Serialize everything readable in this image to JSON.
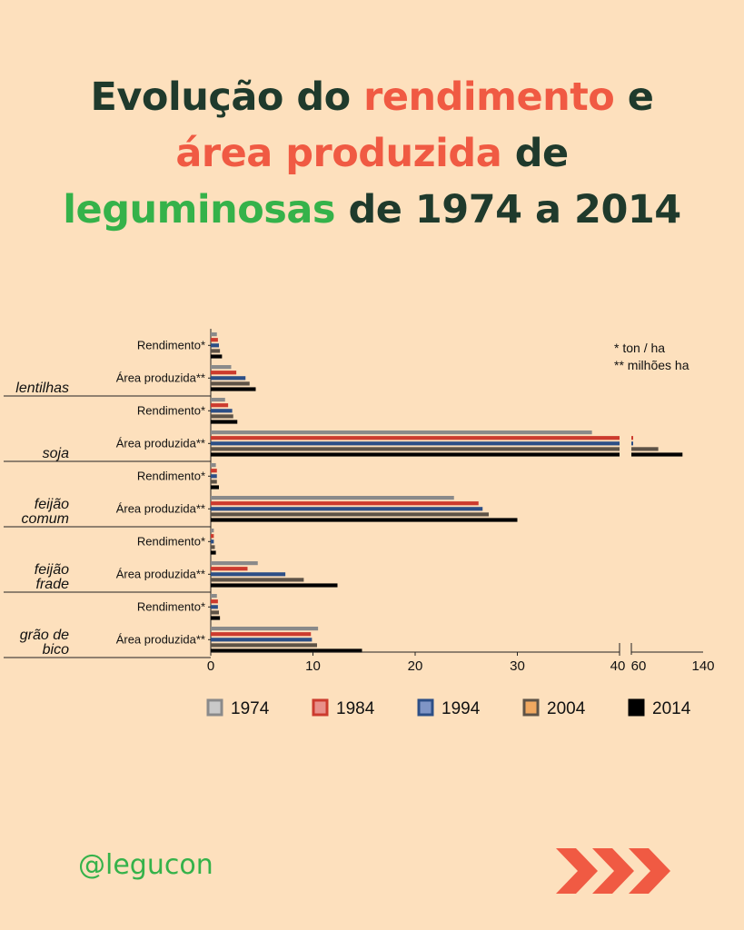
{
  "title": {
    "line1_a": "Evolução do ",
    "line1_b": "rendimento",
    "line1_c": " e",
    "line2_a": "área  produzida",
    "line2_b": " de",
    "line3_a": "leguminosas",
    "line3_b": " de 1974 a 2014"
  },
  "handle": "@legucon",
  "colors": {
    "background": "#fde0bd",
    "title_dark": "#1f3a2c",
    "title_red": "#f05a43",
    "title_green": "#35b24a",
    "arrows": "#f05a43"
  },
  "chart_data": {
    "type": "bar",
    "orientation": "horizontal",
    "notes": [
      "* ton / ha",
      "** milhões ha"
    ],
    "metric_labels": [
      "Rendimento*",
      "Área produzida**"
    ],
    "crops": [
      {
        "name_lines": [
          "lentilhas"
        ],
        "rendimento": [
          0.6,
          0.7,
          0.8,
          0.9,
          1.1
        ],
        "area": [
          2.0,
          2.5,
          3.4,
          3.8,
          4.4
        ]
      },
      {
        "name_lines": [
          "soja"
        ],
        "rendimento": [
          1.4,
          1.7,
          2.1,
          2.2,
          2.6
        ],
        "area": [
          37.3,
          40.5,
          45.0,
          90.0,
          117.0
        ]
      },
      {
        "name_lines": [
          "feijão",
          "comum"
        ],
        "rendimento": [
          0.5,
          0.6,
          0.6,
          0.6,
          0.8
        ],
        "area": [
          23.8,
          26.2,
          26.6,
          27.2,
          30.0
        ]
      },
      {
        "name_lines": [
          "feijão",
          "frade"
        ],
        "rendimento": [
          0.3,
          0.3,
          0.3,
          0.4,
          0.5
        ],
        "area": [
          4.6,
          3.6,
          7.3,
          9.1,
          12.4
        ]
      },
      {
        "name_lines": [
          "grão de",
          "bico"
        ],
        "rendimento": [
          0.6,
          0.7,
          0.7,
          0.8,
          0.9
        ],
        "area": [
          10.5,
          9.8,
          9.9,
          10.4,
          14.8
        ]
      }
    ],
    "series": [
      {
        "name": "1974",
        "color": "#8a8a8a",
        "legend_fill": "#c9c9c9"
      },
      {
        "name": "1984",
        "color": "#cc3b2e",
        "legend_fill": "#e8908a"
      },
      {
        "name": "1994",
        "color": "#2d4f86",
        "legend_fill": "#7f95c6"
      },
      {
        "name": "2004",
        "color": "#5e5347",
        "legend_fill": "#f0a860"
      },
      {
        "name": "2014",
        "color": "#000000",
        "legend_fill": "#000000"
      }
    ],
    "x_ticks_left": [
      0,
      10,
      20,
      30,
      40
    ],
    "x_ticks_right": [
      60,
      140
    ],
    "xlim_left": [
      0,
      40
    ],
    "xlim_right": [
      60,
      140
    ]
  }
}
